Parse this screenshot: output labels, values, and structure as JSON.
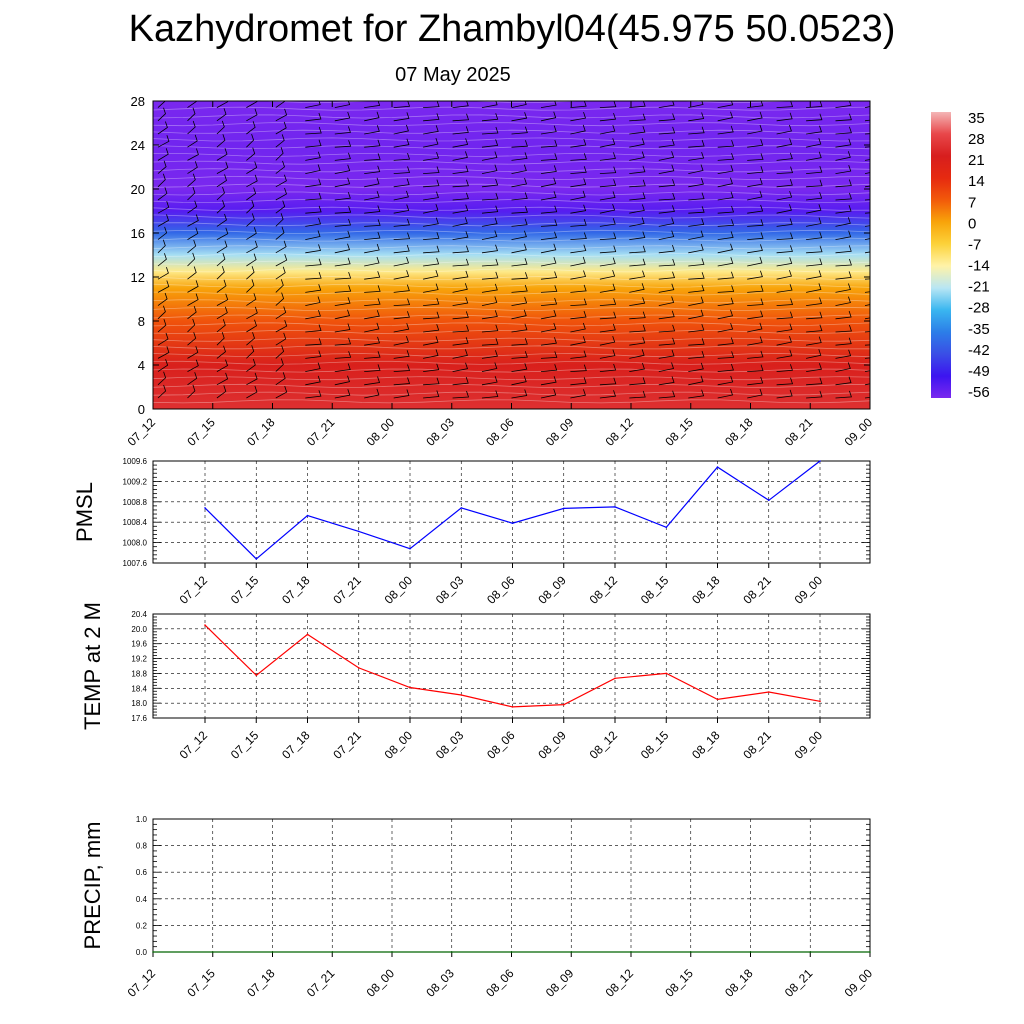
{
  "title": "Kazhydromet for Zhambyl04(45.975 50.0523)",
  "date": "07 May 2025",
  "chart_data": [
    {
      "type": "heatmap",
      "x_labels": [
        "07_12",
        "07_15",
        "07_18",
        "07_21",
        "08_00",
        "08_03",
        "08_06",
        "08_09",
        "08_12",
        "08_15",
        "08_18",
        "08_21",
        "09_00"
      ],
      "y_ticks": [
        "0",
        "4",
        "8",
        "12",
        "16",
        "20",
        "24",
        "28"
      ],
      "ylim": [
        0,
        28
      ],
      "colorbar": {
        "labels": [
          "35",
          "28",
          "21",
          "14",
          "7",
          "0",
          "-7",
          "-14",
          "-21",
          "-28",
          "-35",
          "-42",
          "-49",
          "-56"
        ],
        "colors": [
          "#f4b6b6",
          "#e8474a",
          "#d71e1e",
          "#e62a10",
          "#f25a0a",
          "#f8a40a",
          "#fcd23a",
          "#fff3a8",
          "#b8e6f4",
          "#3ab6f0",
          "#2c7ee8",
          "#3a4ee6",
          "#3c14f0",
          "#7a28ef"
        ]
      },
      "temperature_profile": [
        {
          "height": 0,
          "value": 24
        },
        {
          "height": 4,
          "value": 20
        },
        {
          "height": 8,
          "value": 8
        },
        {
          "height": 11,
          "value": 0
        },
        {
          "height": 12.5,
          "value": -12
        },
        {
          "height": 14,
          "value": -22
        },
        {
          "height": 16,
          "value": -38
        },
        {
          "height": 18,
          "value": -52
        },
        {
          "height": 20,
          "value": -56
        },
        {
          "height": 24,
          "value": -55
        },
        {
          "height": 28,
          "value": -60
        }
      ]
    },
    {
      "type": "line",
      "ylabel": "PMSL",
      "x_labels": [
        "07_12",
        "07_15",
        "07_18",
        "07_21",
        "08_00",
        "08_03",
        "08_06",
        "08_09",
        "08_12",
        "08_15",
        "08_18",
        "08_21",
        "09_00"
      ],
      "y_ticks": [
        "1007.6",
        "1008.0",
        "1008.4",
        "1008.8",
        "1009.2",
        "1009.6"
      ],
      "ylim": [
        1007.6,
        1009.6
      ],
      "series": [
        {
          "color": "#0000ff",
          "values": [
            1008.68,
            1007.68,
            1008.53,
            1008.22,
            1007.88,
            1008.68,
            1008.38,
            1008.67,
            1008.7,
            1008.3,
            1009.48,
            1008.83,
            1009.6
          ]
        }
      ]
    },
    {
      "type": "line",
      "ylabel": "TEMP at 2 M",
      "x_labels": [
        "07_12",
        "07_15",
        "07_18",
        "07_21",
        "08_00",
        "08_03",
        "08_06",
        "08_09",
        "08_12",
        "08_15",
        "08_18",
        "08_21",
        "09_00"
      ],
      "y_ticks": [
        "17.6",
        "18.0",
        "18.4",
        "18.8",
        "19.2",
        "19.6",
        "20.0",
        "20.4"
      ],
      "ylim": [
        17.6,
        20.4
      ],
      "series": [
        {
          "color": "#ff0000",
          "values": [
            20.1,
            18.75,
            19.85,
            18.95,
            18.42,
            18.22,
            17.9,
            17.96,
            18.67,
            18.8,
            18.1,
            18.3,
            18.05
          ]
        }
      ]
    },
    {
      "type": "line",
      "ylabel": "PRECIP, mm",
      "x_labels": [
        "07_12",
        "07_15",
        "07_18",
        "07_21",
        "08_00",
        "08_03",
        "08_06",
        "08_09",
        "08_12",
        "08_15",
        "08_18",
        "08_21",
        "09_00"
      ],
      "y_ticks": [
        "0.0",
        "0.2",
        "0.4",
        "0.6",
        "0.8",
        "1.0"
      ],
      "ylim": [
        0,
        1
      ],
      "series": [
        {
          "color": "#006400",
          "values": [
            0,
            0,
            0,
            0,
            0,
            0,
            0,
            0,
            0,
            0,
            0,
            0,
            0
          ]
        }
      ]
    }
  ]
}
